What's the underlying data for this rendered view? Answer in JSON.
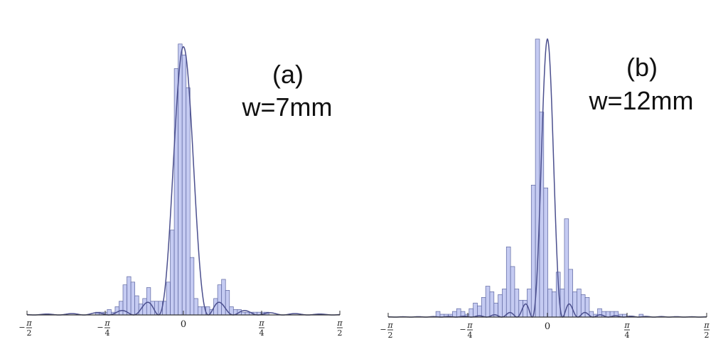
{
  "chart_data": [
    {
      "type": "bar",
      "panel_label": "(a)",
      "width_label": "w=7mm",
      "x_range": [
        -1.5708,
        1.5708
      ],
      "y_range": [
        0,
        1.0
      ],
      "x_tick_labels": [
        {
          "sign": "−",
          "num": "π",
          "den": "2",
          "value": -1.5708
        },
        {
          "sign": "−",
          "num": "π",
          "den": "4",
          "value": -0.7854
        },
        {
          "text": "0",
          "value": 0
        },
        {
          "num": "π",
          "den": "4",
          "value": 0.7854
        },
        {
          "num": "π",
          "den": "2",
          "value": 1.5708
        }
      ],
      "histogram": {
        "bin_start": -0.884,
        "bin_width": 0.0396,
        "values": [
          0.01,
          0.01,
          0.01,
          0.02,
          0.01,
          0.03,
          0.05,
          0.11,
          0.14,
          0.12,
          0.07,
          0.04,
          0.06,
          0.1,
          0.05,
          0.05,
          0.05,
          0.05,
          0.12,
          0.31,
          0.9,
          0.99,
          0.95,
          0.83,
          0.21,
          0.06,
          0.03,
          0.03,
          0.03,
          0.02,
          0.06,
          0.11,
          0.13,
          0.09,
          0.03,
          0.02,
          0.02,
          0.01,
          0.01,
          0.01,
          0.01,
          0.01,
          0.01,
          0.01
        ]
      },
      "fit_curve": {
        "peak": 0.98,
        "first_zero": 0.25
      }
    },
    {
      "type": "bar",
      "panel_label": "(b)",
      "width_label": "w=12mm",
      "x_range": [
        -1.5708,
        1.5708
      ],
      "y_range": [
        0,
        1.0
      ],
      "x_tick_labels": [
        {
          "sign": "−",
          "num": "π",
          "den": "2",
          "value": -1.5708
        },
        {
          "sign": "−",
          "num": "π",
          "den": "4",
          "value": -0.7854
        },
        {
          "text": "0",
          "value": 0
        },
        {
          "num": "π",
          "den": "4",
          "value": 0.7854
        },
        {
          "num": "π",
          "den": "2",
          "value": 1.5708
        }
      ],
      "histogram": {
        "bin_start": -1.1,
        "bin_width": 0.0409,
        "values": [
          0.02,
          0.01,
          0.01,
          0.01,
          0.02,
          0.03,
          0.02,
          0.01,
          0.03,
          0.05,
          0.04,
          0.07,
          0.11,
          0.09,
          0.05,
          0.08,
          0.1,
          0.25,
          0.18,
          0.1,
          0.06,
          0.06,
          0.1,
          0.47,
          0.99,
          0.73,
          0.46,
          0.1,
          0.09,
          0.16,
          0.1,
          0.35,
          0.17,
          0.09,
          0.1,
          0.08,
          0.07,
          0.02,
          0.01,
          0.03,
          0.02,
          0.02,
          0.02,
          0.02,
          0.01,
          0.01,
          0.0,
          0.0,
          0.0,
          0.01
        ]
      },
      "fit_curve": {
        "peak": 0.99,
        "first_zero": 0.15
      }
    }
  ]
}
